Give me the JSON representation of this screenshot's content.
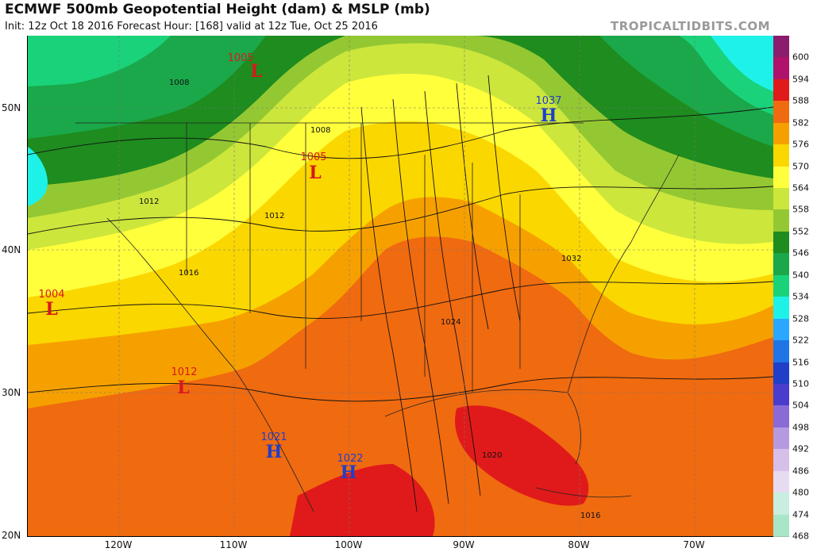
{
  "header": {
    "title": "ECMWF 500mb Geopotential Height (dam) & MSLP (mb)",
    "subtitle": "Init: 12z Oct 18 2016   Forecast Hour: [168]   valid at 12z Tue, Oct 25 2016",
    "brand": "TROPICALTIDBITS.COM"
  },
  "axes": {
    "lat_labels": [
      "50N",
      "40N",
      "30N",
      "20N"
    ],
    "lon_labels": [
      "120W",
      "110W",
      "100W",
      "90W",
      "80W",
      "70W"
    ]
  },
  "colorbar": {
    "ticks": [
      "600",
      "594",
      "588",
      "582",
      "576",
      "570",
      "564",
      "558",
      "552",
      "546",
      "540",
      "534",
      "528",
      "522",
      "516",
      "510",
      "504",
      "498",
      "492",
      "486",
      "480",
      "474",
      "468"
    ],
    "colors": [
      "#8c1c6c",
      "#b0116a",
      "#e01a1a",
      "#f06a10",
      "#f6a000",
      "#fbd700",
      "#ffff3c",
      "#cce63c",
      "#94c832",
      "#1e8c1e",
      "#1aa84a",
      "#1ad27a",
      "#1ef2e8",
      "#2aa8ff",
      "#1f74e6",
      "#1f3fc8",
      "#4a3ccc",
      "#8a6ad6",
      "#b69ae0",
      "#d6bfe8",
      "#e6dcf2",
      "#c8eee0",
      "#a8e6c8"
    ]
  },
  "pressure_centers": [
    {
      "type": "L",
      "value": "1005",
      "color": "#d7191c"
    },
    {
      "type": "L",
      "value": "1005",
      "color": "#d7191c"
    },
    {
      "type": "L",
      "value": "1004",
      "color": "#d7191c"
    },
    {
      "type": "L",
      "value": "1012",
      "color": "#d7191c"
    },
    {
      "type": "H",
      "value": "1037",
      "color": "#1f3fc8"
    },
    {
      "type": "H",
      "value": "1021",
      "color": "#1f3fc8"
    },
    {
      "type": "H",
      "value": "1022",
      "color": "#1f3fc8"
    }
  ],
  "isobar_labels": [
    "1008",
    "1008",
    "1012",
    "1012",
    "1016",
    "1024",
    "1032",
    "1020",
    "1016"
  ]
}
